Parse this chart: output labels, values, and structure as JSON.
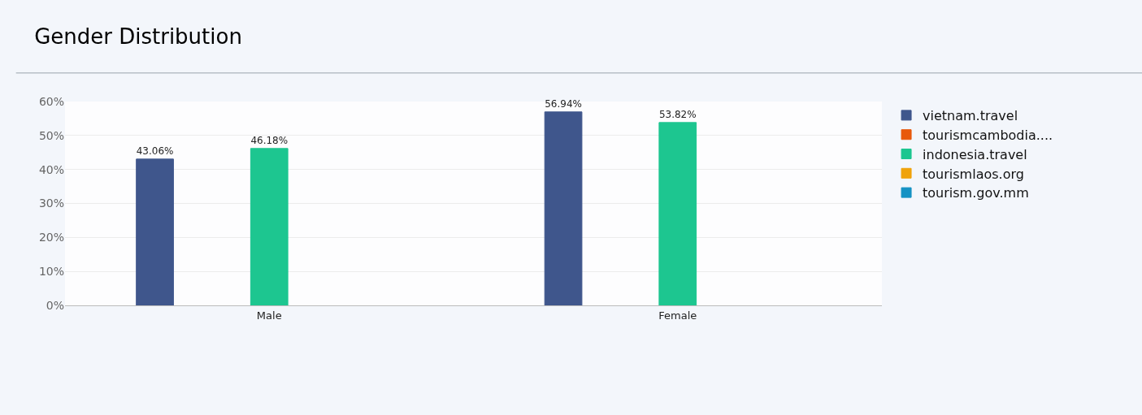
{
  "chart_data": {
    "type": "bar",
    "title": "Gender Distribution",
    "categories": [
      "Male",
      "Female"
    ],
    "series": [
      {
        "name": "vietnam.travel",
        "color": "#3f568c",
        "values": [
          43.06,
          56.94
        ],
        "value_labels": [
          "43.06%",
          "56.94%"
        ]
      },
      {
        "name": "tourismcambodia....",
        "color": "#e8590c",
        "values": [
          null,
          null
        ]
      },
      {
        "name": "indonesia.travel",
        "color": "#1dc690",
        "values": [
          46.18,
          53.82
        ],
        "value_labels": [
          "46.18%",
          "53.82%"
        ]
      },
      {
        "name": "tourismlaos.org",
        "color": "#f0a30a",
        "values": [
          null,
          null
        ]
      },
      {
        "name": "tourism.gov.mm",
        "color": "#1592c4",
        "values": [
          null,
          null
        ]
      }
    ],
    "ylim": [
      0,
      60
    ],
    "yticks": [
      {
        "value": 0,
        "label": "0%"
      },
      {
        "value": 10,
        "label": "10%"
      },
      {
        "value": 20,
        "label": "20%"
      },
      {
        "value": 30,
        "label": "30%"
      },
      {
        "value": 40,
        "label": "40%"
      },
      {
        "value": 50,
        "label": "50%"
      },
      {
        "value": 60,
        "label": "60%"
      }
    ],
    "grid": "y",
    "legend": "top right"
  }
}
